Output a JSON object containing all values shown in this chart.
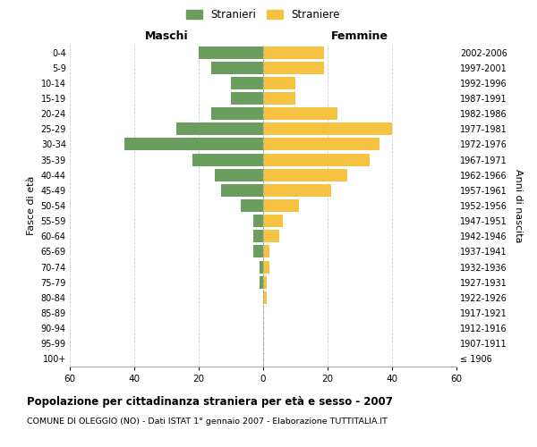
{
  "age_groups": [
    "100+",
    "95-99",
    "90-94",
    "85-89",
    "80-84",
    "75-79",
    "70-74",
    "65-69",
    "60-64",
    "55-59",
    "50-54",
    "45-49",
    "40-44",
    "35-39",
    "30-34",
    "25-29",
    "20-24",
    "15-19",
    "10-14",
    "5-9",
    "0-4"
  ],
  "birth_years": [
    "≤ 1906",
    "1907-1911",
    "1912-1916",
    "1917-1921",
    "1922-1926",
    "1927-1931",
    "1932-1936",
    "1937-1941",
    "1942-1946",
    "1947-1951",
    "1952-1956",
    "1957-1961",
    "1962-1966",
    "1967-1971",
    "1972-1976",
    "1977-1981",
    "1982-1986",
    "1987-1991",
    "1992-1996",
    "1997-2001",
    "2002-2006"
  ],
  "males": [
    0,
    0,
    0,
    0,
    0,
    1,
    1,
    3,
    3,
    3,
    7,
    13,
    15,
    22,
    43,
    27,
    16,
    10,
    10,
    16,
    20
  ],
  "females": [
    0,
    0,
    0,
    0,
    1,
    1,
    2,
    2,
    5,
    6,
    11,
    21,
    26,
    33,
    36,
    40,
    23,
    10,
    10,
    19,
    19
  ],
  "male_color": "#6b9e5e",
  "female_color": "#f5c242",
  "background_color": "#ffffff",
  "grid_color": "#cccccc",
  "xlim": 60,
  "title": "Popolazione per cittadinanza straniera per età e sesso - 2007",
  "subtitle": "COMUNE DI OLEGGIO (NO) - Dati ISTAT 1° gennaio 2007 - Elaborazione TUTTITALIA.IT",
  "xlabel_left": "Maschi",
  "xlabel_right": "Femmine",
  "ylabel_left": "Fasce di età",
  "ylabel_right": "Anni di nascita",
  "legend_male": "Stranieri",
  "legend_female": "Straniere",
  "xticks": [
    -60,
    -40,
    -20,
    0,
    20,
    40,
    60
  ],
  "xtick_labels": [
    "60",
    "40",
    "20",
    "0",
    "20",
    "40",
    "60"
  ]
}
